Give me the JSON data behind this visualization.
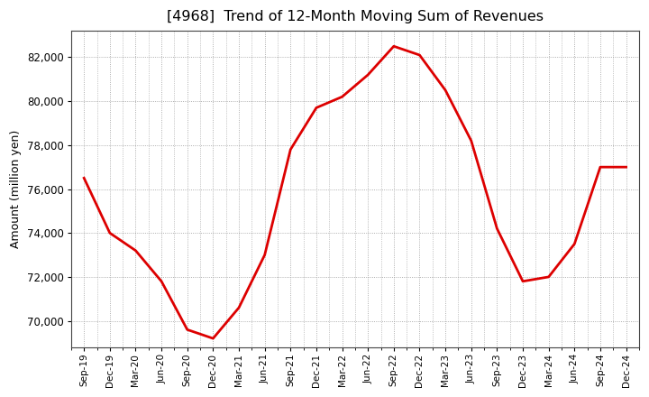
{
  "title": "[4968]  Trend of 12-Month Moving Sum of Revenues",
  "ylabel": "Amount (million yen)",
  "line_color": "#dd0000",
  "background_color": "#ffffff",
  "plot_bg_color": "#ffffff",
  "grid_color": "#999999",
  "ylim": [
    68800,
    83200
  ],
  "yticks": [
    70000,
    72000,
    74000,
    76000,
    78000,
    80000,
    82000
  ],
  "x_labels": [
    "Sep-19",
    "Dec-19",
    "Mar-20",
    "Jun-20",
    "Sep-20",
    "Dec-20",
    "Mar-21",
    "Jun-21",
    "Sep-21",
    "Dec-21",
    "Mar-22",
    "Jun-22",
    "Sep-22",
    "Dec-22",
    "Mar-23",
    "Jun-23",
    "Sep-23",
    "Dec-23",
    "Mar-24",
    "Jun-24",
    "Sep-24",
    "Dec-24"
  ],
  "values": [
    76500,
    74000,
    73200,
    71800,
    69600,
    69200,
    70600,
    73000,
    77800,
    79700,
    80200,
    81200,
    82500,
    82100,
    80500,
    78200,
    74200,
    71800,
    72000,
    73500,
    77000,
    77000
  ]
}
